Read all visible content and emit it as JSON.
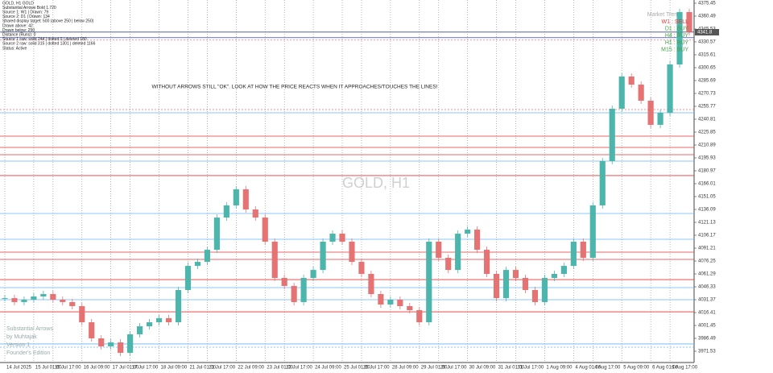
{
  "chart_data": {
    "type": "candlestick",
    "title": "GOLD, H1",
    "info_lines": [
      "GOLD, H1 GOLD",
      "Substantial Arrows Bold 1.720",
      "Source 1: W1 | Drawn: 79",
      "Source 2: D1 | Drawn: 134",
      "Shared display target: 500 (above 250 | below 250)",
      "Drawn above: 42",
      "Drawn below: 250",
      "Distance (Runs): 0",
      "Source 1 raw: solid 244 | dotted 0 | deleted 180",
      "Source 2 raw: solid 315 | dotted 1301 | deleted 1166",
      "Status: Active"
    ],
    "annotation": "WITHOUT ARROWS STILL \"OK\". LOOK AT HOW THE PRICE REACTS WHEN IT APPROACHES/TOUCHES THE LINES!",
    "trend_title": "Market Trend",
    "trend": [
      {
        "label": "W1 : SELL",
        "color": "#e53935"
      },
      {
        "label": "D1 : BUY",
        "color": "#43a047"
      },
      {
        "label": "H4 : BUY",
        "color": "#43a047"
      },
      {
        "label": "H1 : BUY",
        "color": "#43a047"
      },
      {
        "label": "M15 : BUY",
        "color": "#43a047"
      }
    ],
    "branding": [
      "Substantial Arrows",
      "by Muhtajak",
      "Version 1",
      "Founder's Edition"
    ],
    "up_color": "#4db6ac",
    "down_color": "#e57373",
    "values": [
      4033.2,
      4028.6,
      4031.4,
      4035.1,
      4037.9,
      4031.4,
      4028.6,
      4023.9,
      4005.2,
      3986.5,
      3977.2,
      3981.8,
      3969.7,
      3991.2,
      4000.5,
      4005.2,
      4009.9,
      4005.2,
      4042.6,
      4070.6,
      4075.3,
      4089.3,
      4126.7,
      4140.8,
      4159.5,
      4136.1,
      4126.7,
      4098.7,
      4056.6,
      4047.3,
      4028.6,
      4056.6,
      4065.9,
      4098.7,
      4108.0,
      4098.7,
      4075.3,
      4061.3,
      4037.9,
      4025.8,
      4031.4,
      4023.9,
      4019.2,
      4005.2,
      4098.7,
      4080.0,
      4065.9,
      4108.0,
      4112.7,
      4089.3,
      4061.3,
      4033.2,
      4065.9,
      4056.6,
      4042.6,
      4028.6,
      4056.6,
      4061.3,
      4070.6,
      4098.7,
      4080.0,
      4140.8,
      4192.2,
      4253.0,
      4290.4,
      4281.0,
      4262.3,
      4234.3,
      4248.3,
      4304.4,
      4365.2,
      4341.8
    ],
    "levels": [
      {
        "value": 4342.0,
        "color": "#3949ab",
        "dashed": false
      },
      {
        "value": 4335.5,
        "color": "#3949ab",
        "dashed": false
      },
      {
        "value": 4332.7,
        "color": "#e57373",
        "dashed": true
      },
      {
        "value": 4252.0,
        "color": "#e57373",
        "dashed": true
      },
      {
        "value": 4248.3,
        "color": "#64b5f6",
        "dashed": false
      },
      {
        "value": 4221.2,
        "color": "#e53935",
        "dashed": false
      },
      {
        "value": 4208.1,
        "color": "#e53935",
        "dashed": false
      },
      {
        "value": 4199.7,
        "color": "#e53935",
        "dashed": false
      },
      {
        "value": 4192.2,
        "color": "#64b5f6",
        "dashed": false
      },
      {
        "value": 4175.4,
        "color": "#e53935",
        "dashed": false
      },
      {
        "value": 4131.4,
        "color": "#64b5f6",
        "dashed": false
      },
      {
        "value": 4101.5,
        "color": "#64b5f6",
        "dashed": false
      },
      {
        "value": 4086.5,
        "color": "#e53935",
        "dashed": false
      },
      {
        "value": 4078.1,
        "color": "#e53935",
        "dashed": false
      },
      {
        "value": 4054.7,
        "color": "#e53935",
        "dashed": false
      },
      {
        "value": 4045.4,
        "color": "#64b5f6",
        "dashed": false
      },
      {
        "value": 4031.4,
        "color": "#64b5f6",
        "dashed": false
      },
      {
        "value": 4017.3,
        "color": "#e53935",
        "dashed": false
      },
      {
        "value": 3980.0,
        "color": "#64b5f6",
        "dashed": false
      },
      {
        "value": 3976.2,
        "color": "#64b5f6",
        "dashed": true
      }
    ],
    "ylim": [
      3958.44,
      4379.19
    ],
    "yticks": [
      3971.53,
      3986.49,
      4001.45,
      4016.41,
      4031.37,
      4046.33,
      4061.29,
      4076.25,
      4091.21,
      4106.17,
      4121.13,
      4136.09,
      4151.05,
      4166.01,
      4180.97,
      4195.93,
      4210.89,
      4225.85,
      4240.81,
      4255.77,
      4270.73,
      4285.69,
      4300.65,
      4315.61,
      4330.57,
      4345.53,
      4360.49,
      4375.45
    ],
    "xlim": [
      -0.5,
      71.5
    ],
    "xticks": [
      {
        "value": 0,
        "label": "14 Jul 2025"
      },
      {
        "value": 3,
        "label": "15 Jul 01:00"
      },
      {
        "value": 5,
        "label": "15 Jul 17:00"
      },
      {
        "value": 8,
        "label": "16 Jul 09:00"
      },
      {
        "value": 11,
        "label": "17 Jul 01:00"
      },
      {
        "value": 13,
        "label": "17 Jul 17:00"
      },
      {
        "value": 16,
        "label": "18 Jul 09:00"
      },
      {
        "value": 19,
        "label": "21 Jul 01:00"
      },
      {
        "value": 21,
        "label": "21 Jul 17:00"
      },
      {
        "value": 24,
        "label": "22 Jul 09:00"
      },
      {
        "value": 27,
        "label": "23 Jul 01:00"
      },
      {
        "value": 29,
        "label": "23 Jul 17:00"
      },
      {
        "value": 32,
        "label": "24 Jul 09:00"
      },
      {
        "value": 35,
        "label": "25 Jul 01:00"
      },
      {
        "value": 37,
        "label": "25 Jul 17:00"
      },
      {
        "value": 40,
        "label": "28 Jul 09:00"
      },
      {
        "value": 43,
        "label": "29 Jul 01:00"
      },
      {
        "value": 45,
        "label": "29 Jul 17:00"
      },
      {
        "value": 48,
        "label": "30 Jul 09:00"
      },
      {
        "value": 51,
        "label": "31 Jul 01:00"
      },
      {
        "value": 53,
        "label": "31 Jul 17:00"
      },
      {
        "value": 56,
        "label": "1 Aug 09:00"
      },
      {
        "value": 59,
        "label": "4 Aug 01:00"
      },
      {
        "value": 61,
        "label": "4 Aug 17:00"
      },
      {
        "value": 64,
        "label": "5 Aug 09:00"
      },
      {
        "value": 67,
        "label": "6 Aug 01:00"
      },
      {
        "value": 69,
        "label": "6 Aug 17:00"
      }
    ],
    "current_price": 4341.8
  }
}
